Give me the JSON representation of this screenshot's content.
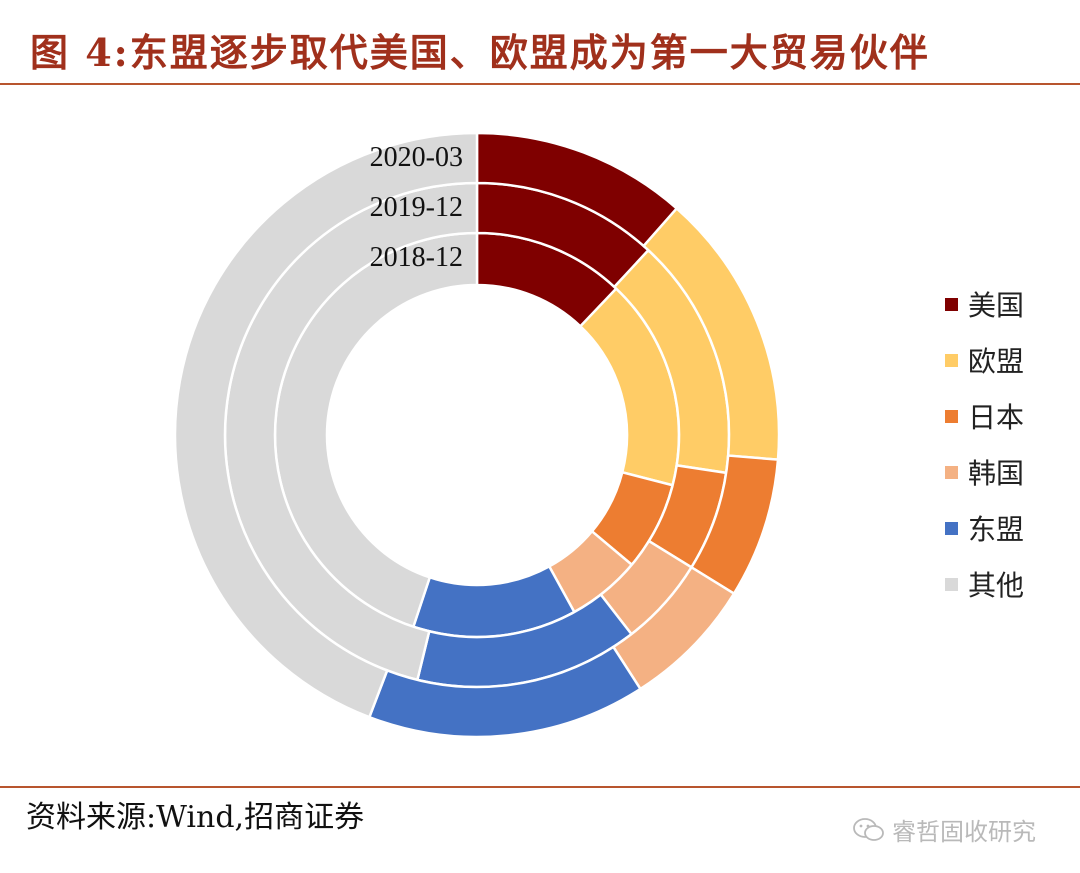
{
  "title": "图 4:东盟逐步取代美国、欧盟成为第一大贸易伙伴",
  "source": "资料来源:Wind,招商证券",
  "watermark": "睿哲固收研究",
  "chart_data": {
    "type": "donut",
    "categories": [
      "美国",
      "欧盟",
      "日本",
      "韩国",
      "东盟",
      "其他"
    ],
    "colors": [
      "#7F0000",
      "#FFCC66",
      "#ED7D31",
      "#F4B183",
      "#4472C4",
      "#D9D9D9"
    ],
    "legend_position": "right",
    "rings": [
      {
        "label": "2018-12",
        "values": [
          12.1,
          16.9,
          7.1,
          5.9,
          13.1,
          44.9
        ]
      },
      {
        "label": "2019-12",
        "values": [
          11.9,
          15.5,
          6.4,
          5.7,
          14.3,
          46.2
        ]
      },
      {
        "label": "2020-03",
        "values": [
          11.5,
          14.8,
          7.5,
          7.1,
          14.9,
          44.2
        ]
      }
    ]
  }
}
